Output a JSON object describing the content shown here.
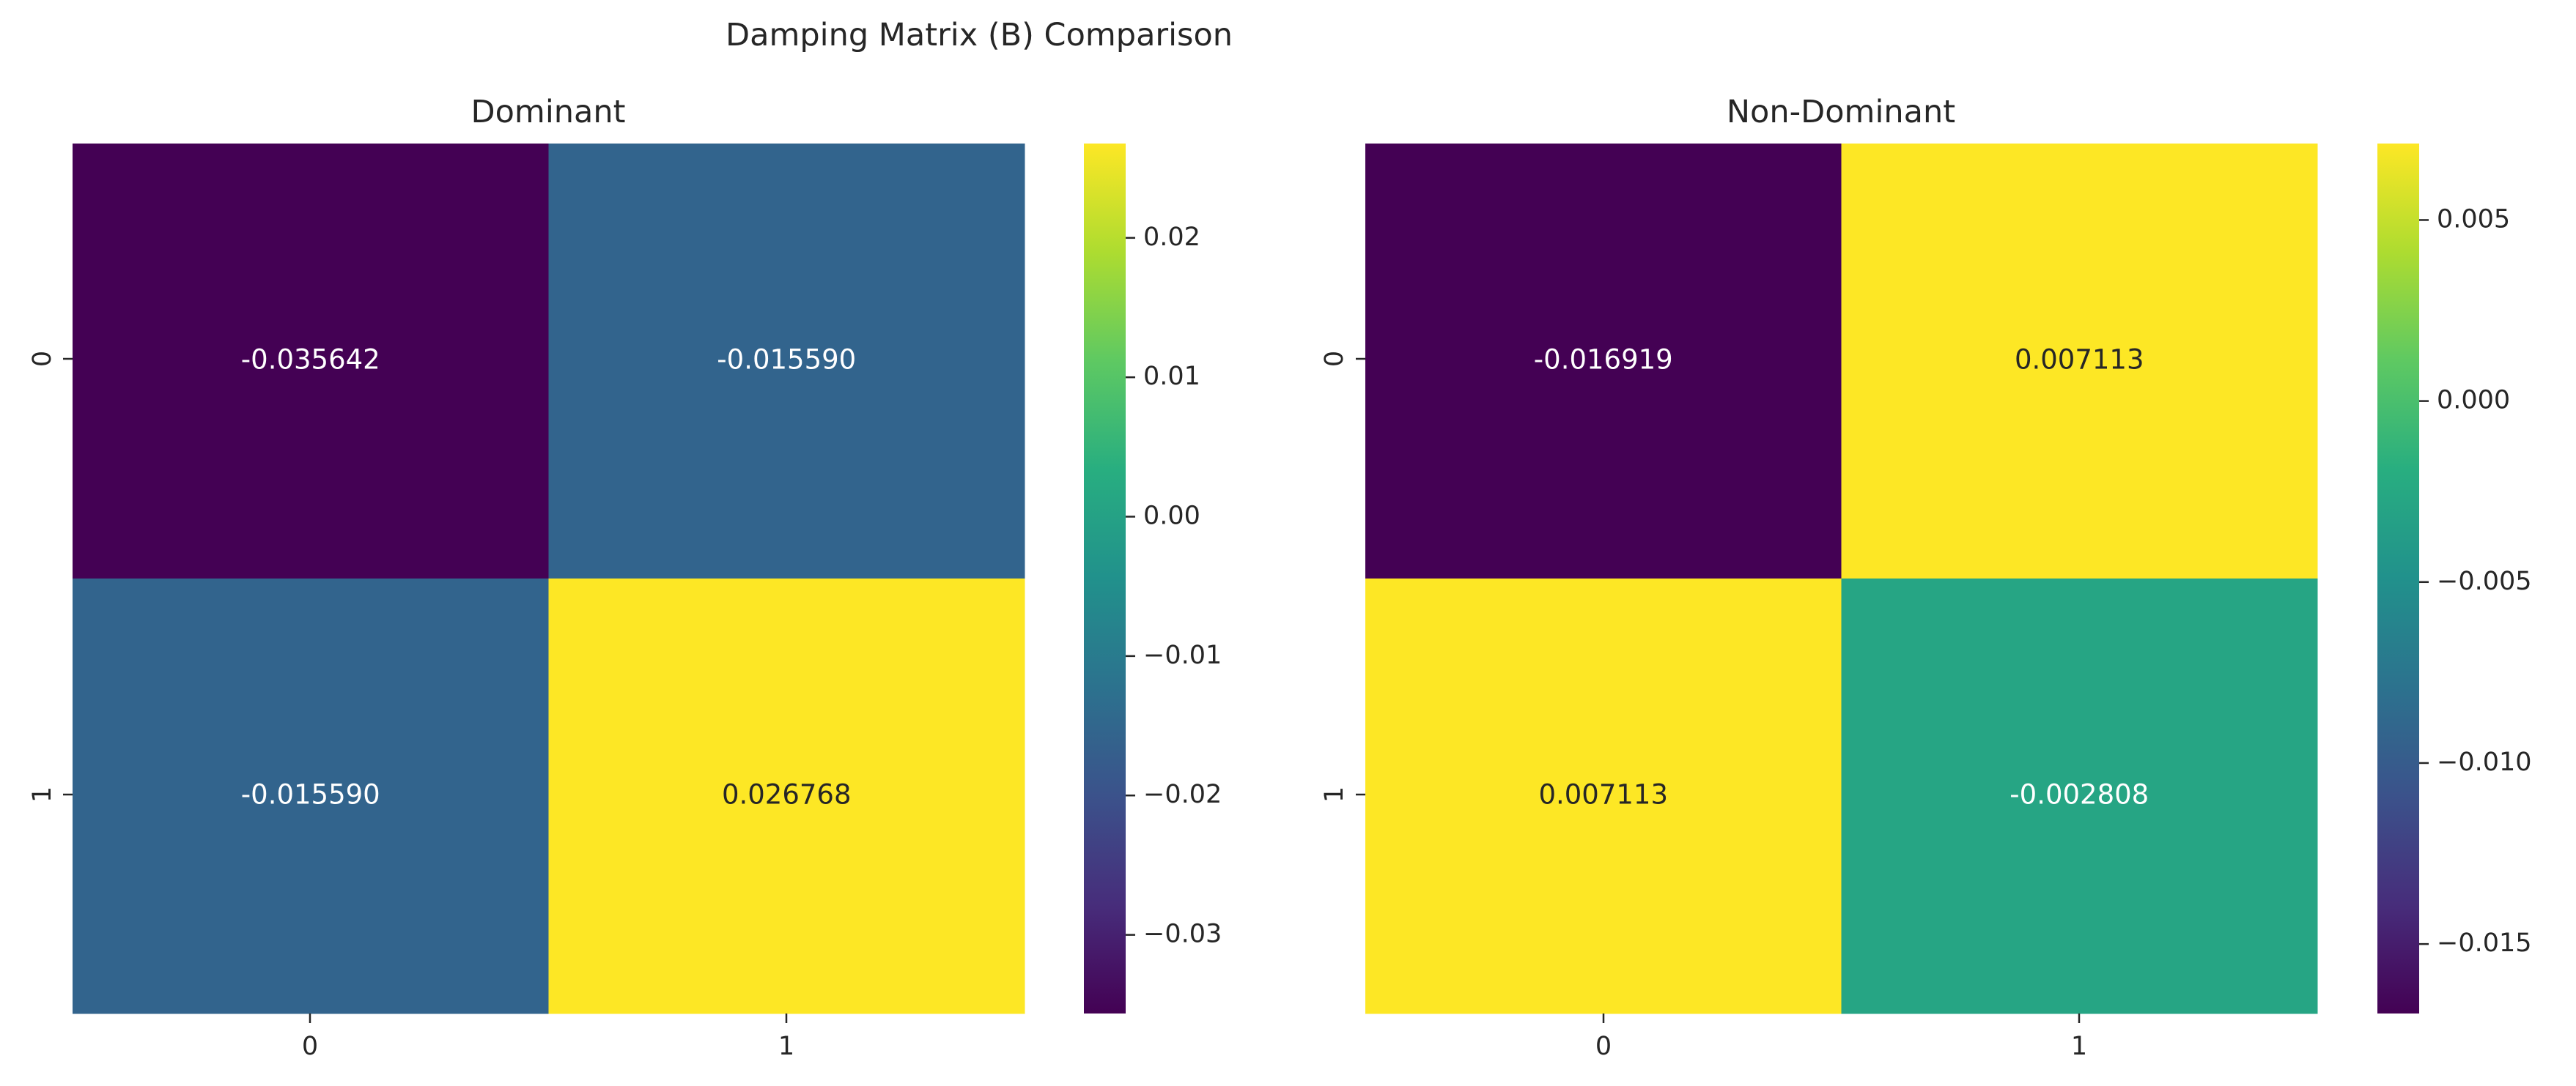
{
  "figure": {
    "title": "Damping Matrix (B) Comparison"
  },
  "chart_data": [
    {
      "type": "heatmap",
      "title": "Dominant",
      "xlabel": "",
      "ylabel": "",
      "x_tick_labels": [
        "0",
        "1"
      ],
      "y_tick_labels": [
        "0",
        "1"
      ],
      "values": [
        [
          -0.035642,
          -0.01559
        ],
        [
          -0.01559,
          0.026768
        ]
      ],
      "cell_labels": [
        [
          "-0.035642",
          "-0.015590"
        ],
        [
          "-0.015590",
          "0.026768"
        ]
      ],
      "colormap": "viridis",
      "color_range": [
        -0.035642,
        0.026768
      ],
      "colorbar_ticks": [
        -0.03,
        -0.02,
        -0.01,
        0.0,
        0.01,
        0.02
      ],
      "colorbar_tick_labels": [
        "−0.03",
        "−0.02",
        "−0.01",
        "0.00",
        "0.01",
        "0.02"
      ]
    },
    {
      "type": "heatmap",
      "title": "Non-Dominant",
      "xlabel": "",
      "ylabel": "",
      "x_tick_labels": [
        "0",
        "1"
      ],
      "y_tick_labels": [
        "0",
        "1"
      ],
      "values": [
        [
          -0.016919,
          0.007113
        ],
        [
          0.007113,
          -0.002808
        ]
      ],
      "cell_labels": [
        [
          "-0.016919",
          "0.007113"
        ],
        [
          "0.007113",
          "-0.002808"
        ]
      ],
      "colormap": "viridis",
      "color_range": [
        -0.016919,
        0.007113
      ],
      "colorbar_ticks": [
        -0.015,
        -0.01,
        -0.005,
        0.0,
        0.005
      ],
      "colorbar_tick_labels": [
        "−0.015",
        "−0.010",
        "−0.005",
        "0.000",
        "0.005"
      ]
    }
  ]
}
